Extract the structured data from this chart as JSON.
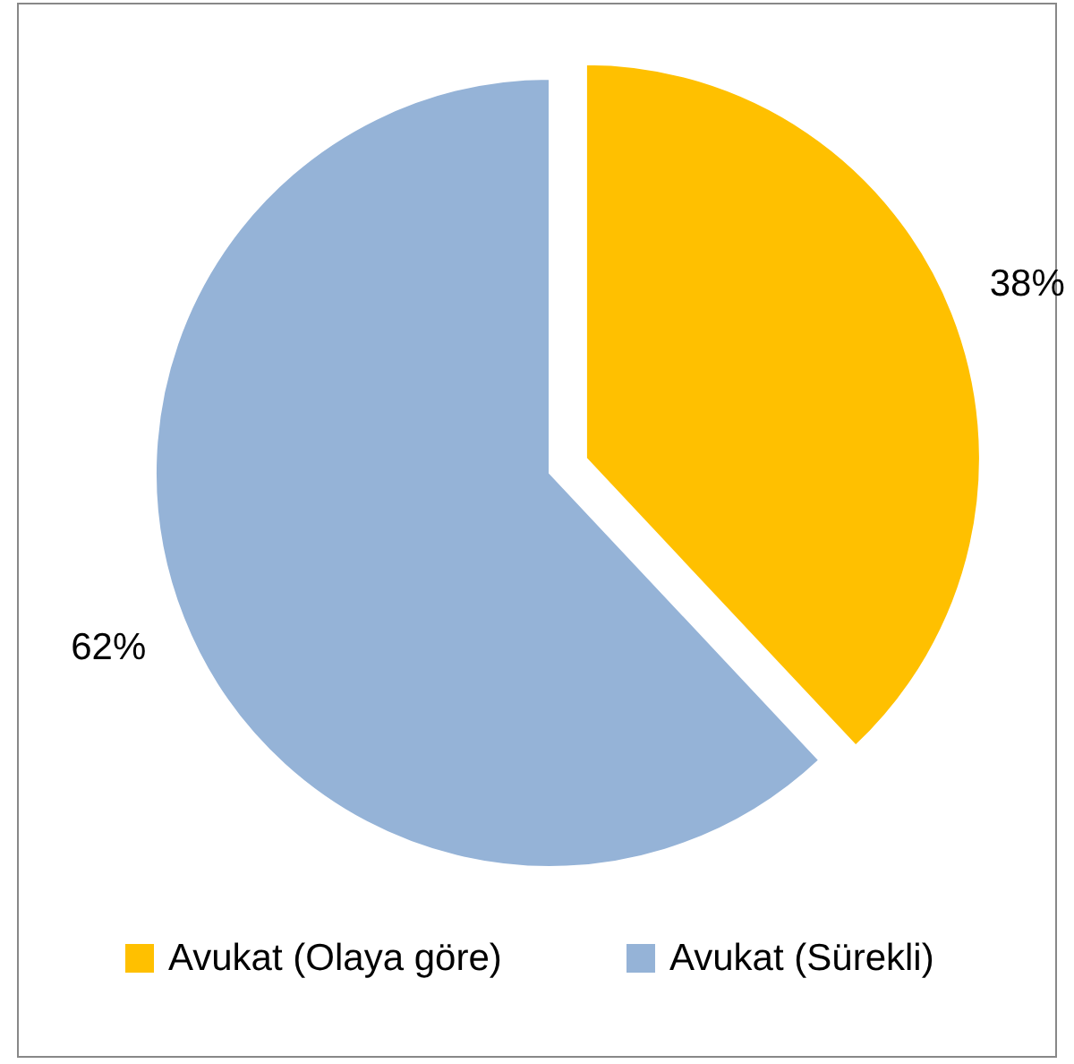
{
  "chart_data": {
    "type": "pie",
    "categories": [
      "Avukat (Olaya göre)",
      "Avukat (Sürekli)"
    ],
    "values": [
      38,
      62
    ],
    "colors": [
      "#ffc000",
      "#95b3d7"
    ],
    "value_labels": [
      "38%",
      "62%"
    ],
    "legend": "bottom"
  }
}
